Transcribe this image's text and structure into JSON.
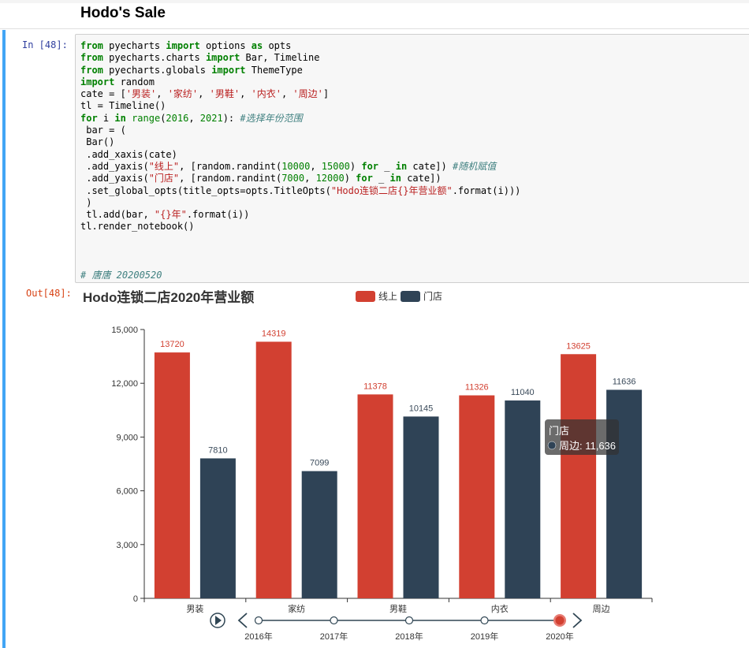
{
  "markdown": {
    "title": "Hodo's Sale"
  },
  "cell": {
    "in_prompt": "In  [48]:",
    "out_prompt": "Out[48]:",
    "code_lines": [
      [
        [
          "kw",
          "from"
        ],
        [
          "t",
          " pyecharts "
        ],
        [
          "kw",
          "import"
        ],
        [
          "t",
          " options "
        ],
        [
          "kw",
          "as"
        ],
        [
          "t",
          " opts"
        ]
      ],
      [
        [
          "kw",
          "from"
        ],
        [
          "t",
          " pyecharts.charts "
        ],
        [
          "kw",
          "import"
        ],
        [
          "t",
          " Bar, Timeline"
        ]
      ],
      [
        [
          "kw",
          "from"
        ],
        [
          "t",
          " pyecharts.globals "
        ],
        [
          "kw",
          "import"
        ],
        [
          "t",
          " ThemeType"
        ]
      ],
      [
        [
          "kw",
          "import"
        ],
        [
          "t",
          " random"
        ]
      ],
      [
        [
          "t",
          "cate = ["
        ],
        [
          "str",
          "'男装'"
        ],
        [
          "t",
          ", "
        ],
        [
          "str",
          "'家纺'"
        ],
        [
          "t",
          ", "
        ],
        [
          "str",
          "'男鞋'"
        ],
        [
          "t",
          ", "
        ],
        [
          "str",
          "'内衣'"
        ],
        [
          "t",
          ", "
        ],
        [
          "str",
          "'周边'"
        ],
        [
          "t",
          "]"
        ]
      ],
      [
        [
          "t",
          "tl = Timeline()"
        ]
      ],
      [
        [
          "kw",
          "for"
        ],
        [
          "t",
          " i "
        ],
        [
          "kw",
          "in"
        ],
        [
          "t",
          " "
        ],
        [
          "bi",
          "range"
        ],
        [
          "t",
          "("
        ],
        [
          "num",
          "2016"
        ],
        [
          "t",
          ", "
        ],
        [
          "num",
          "2021"
        ],
        [
          "t",
          "): "
        ],
        [
          "cm",
          "#选择年份范围"
        ]
      ],
      [
        [
          "t",
          " bar = ("
        ]
      ],
      [
        [
          "t",
          " Bar()"
        ]
      ],
      [
        [
          "t",
          " .add_xaxis(cate)"
        ]
      ],
      [
        [
          "t",
          " .add_yaxis("
        ],
        [
          "str",
          "\"线上\""
        ],
        [
          "t",
          ", [random.randint("
        ],
        [
          "num",
          "10000"
        ],
        [
          "t",
          ", "
        ],
        [
          "num",
          "15000"
        ],
        [
          "t",
          ") "
        ],
        [
          "kw",
          "for"
        ],
        [
          "t",
          " _ "
        ],
        [
          "kw",
          "in"
        ],
        [
          "t",
          " cate]) "
        ],
        [
          "cm",
          "#随机赋值"
        ]
      ],
      [
        [
          "t",
          " .add_yaxis("
        ],
        [
          "str",
          "\"门店\""
        ],
        [
          "t",
          ", [random.randint("
        ],
        [
          "num",
          "7000"
        ],
        [
          "t",
          ", "
        ],
        [
          "num",
          "12000"
        ],
        [
          "t",
          ") "
        ],
        [
          "kw",
          "for"
        ],
        [
          "t",
          " _ "
        ],
        [
          "kw",
          "in"
        ],
        [
          "t",
          " cate])"
        ]
      ],
      [
        [
          "t",
          " .set_global_opts(title_opts=opts.TitleOpts("
        ],
        [
          "str",
          "\"Hodo连锁二店{}年营业额\""
        ],
        [
          "t",
          ".format(i)))"
        ]
      ],
      [
        [
          "t",
          " )"
        ]
      ],
      [
        [
          "t",
          " tl.add(bar, "
        ],
        [
          "str",
          "\"{}年\""
        ],
        [
          "t",
          ".format(i))"
        ]
      ],
      [
        [
          "t",
          "tl.render_notebook()"
        ]
      ],
      [
        [
          "t",
          ""
        ]
      ],
      [
        [
          "t",
          ""
        ]
      ],
      [
        [
          "t",
          ""
        ]
      ],
      [
        [
          "cm",
          "# 唐唐 20200520"
        ]
      ]
    ]
  },
  "colors": {
    "online": "#d24031",
    "store": "#2f4356",
    "tooltip_bg": "rgba(50,50,50,0.72)"
  },
  "chart_data": {
    "type": "bar",
    "title": "Hodo连锁二店2020年营业额",
    "categories": [
      "男装",
      "家纺",
      "男鞋",
      "内衣",
      "周边"
    ],
    "series": [
      {
        "name": "线上",
        "values": [
          13720,
          14319,
          11378,
          11326,
          13625
        ]
      },
      {
        "name": "门店",
        "values": [
          7810,
          7099,
          10145,
          11040,
          11636
        ]
      }
    ],
    "yticks": [
      "0",
      "3,000",
      "6,000",
      "9,000",
      "12,000",
      "15,000"
    ],
    "ylim": [
      0,
      15000
    ],
    "legend": "top-center",
    "grid": false,
    "tooltip": {
      "series": "门店",
      "text": "周边: 11,636"
    },
    "timeline": {
      "labels": [
        "2016年",
        "2017年",
        "2018年",
        "2019年",
        "2020年"
      ],
      "selected": "2020年"
    }
  }
}
